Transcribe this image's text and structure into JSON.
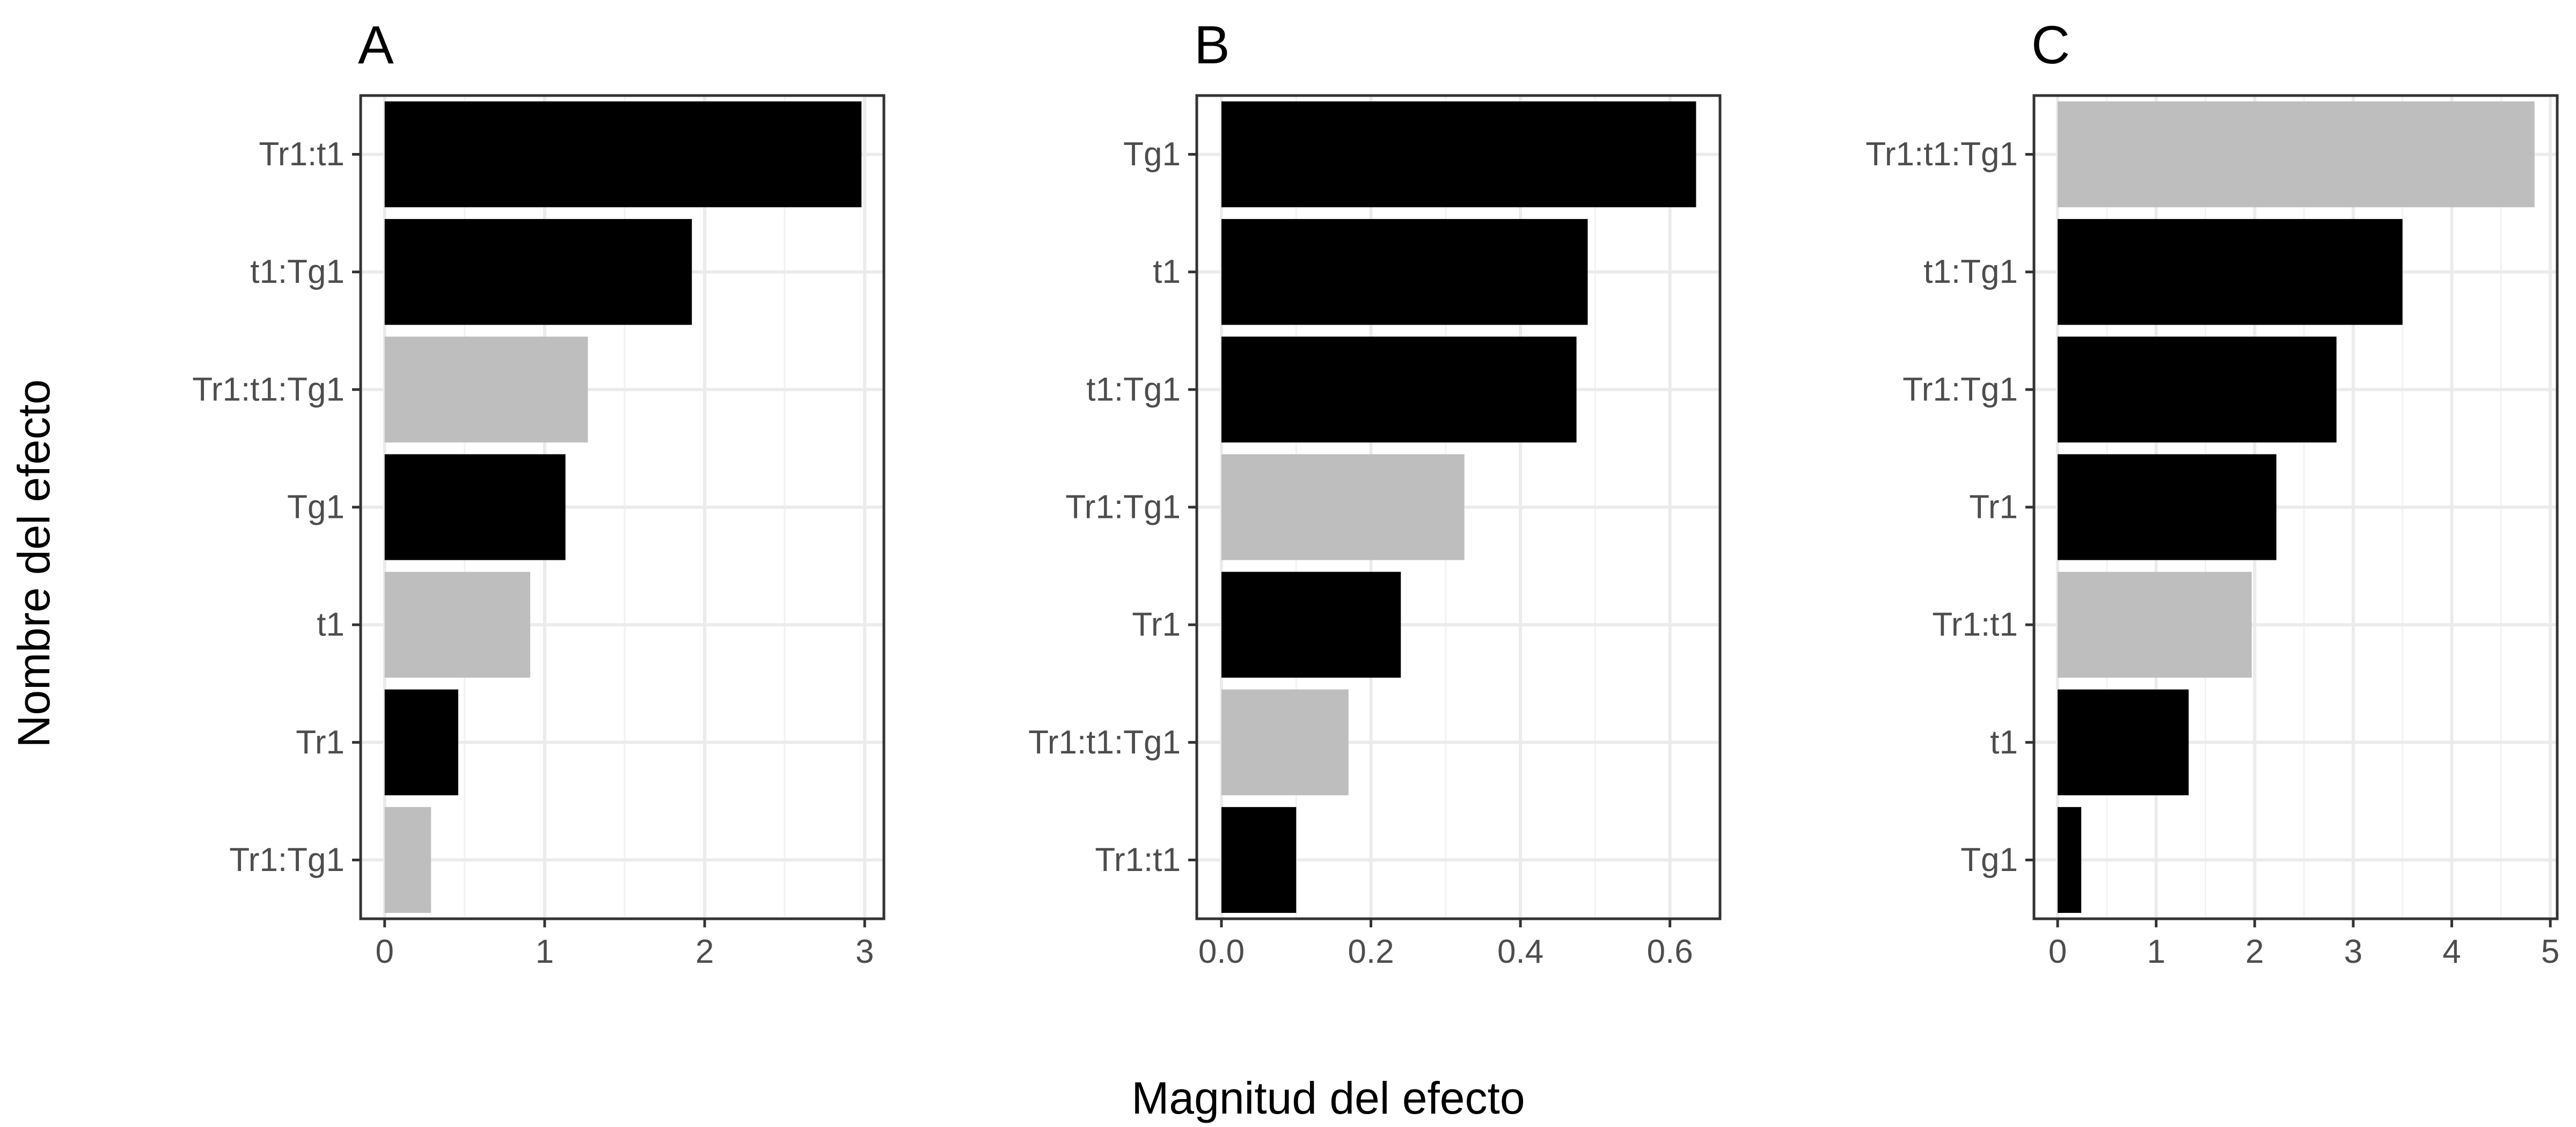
{
  "chart_data": {
    "type": "bar",
    "orientation": "horizontal",
    "xlabel": "Magnitud del efecto",
    "ylabel": "Nombre del efecto",
    "grid": true,
    "legend": "none",
    "colors": {
      "dark": "#000000",
      "light": "#bebebe"
    },
    "panels": [
      {
        "title": "A",
        "xlim": [
          -0.15,
          3.12
        ],
        "xticks": [
          0,
          1,
          2,
          3
        ],
        "xtick_labels": [
          "0",
          "1",
          "2",
          "3"
        ],
        "categories": [
          "Tr1:t1",
          "t1:Tg1",
          "Tr1:t1:Tg1",
          "Tg1",
          "t1",
          "Tr1",
          "Tr1:Tg1"
        ],
        "values": [
          2.98,
          1.92,
          1.27,
          1.13,
          0.91,
          0.46,
          0.29
        ],
        "fill": [
          "dark",
          "dark",
          "light",
          "dark",
          "light",
          "dark",
          "light"
        ]
      },
      {
        "title": "B",
        "xlim": [
          -0.033,
          0.667
        ],
        "xticks": [
          0.0,
          0.2,
          0.4,
          0.6
        ],
        "xtick_labels": [
          "0.0",
          "0.2",
          "0.4",
          "0.6"
        ],
        "categories": [
          "Tg1",
          "t1",
          "t1:Tg1",
          "Tr1:Tg1",
          "Tr1",
          "Tr1:t1:Tg1",
          "Tr1:t1"
        ],
        "values": [
          0.635,
          0.49,
          0.475,
          0.325,
          0.24,
          0.17,
          0.1
        ],
        "fill": [
          "dark",
          "dark",
          "dark",
          "light",
          "dark",
          "light",
          "dark"
        ]
      },
      {
        "title": "C",
        "xlim": [
          -0.24,
          5.07
        ],
        "xticks": [
          0,
          1,
          2,
          3,
          4,
          5
        ],
        "xtick_labels": [
          "0",
          "1",
          "2",
          "3",
          "4",
          "5"
        ],
        "categories": [
          "Tr1:t1:Tg1",
          "t1:Tg1",
          "Tr1:Tg1",
          "Tr1",
          "Tr1:t1",
          "t1",
          "Tg1"
        ],
        "values": [
          4.84,
          3.5,
          2.83,
          2.22,
          1.97,
          1.33,
          0.24
        ],
        "fill": [
          "light",
          "dark",
          "dark",
          "dark",
          "light",
          "dark",
          "dark"
        ]
      }
    ]
  }
}
